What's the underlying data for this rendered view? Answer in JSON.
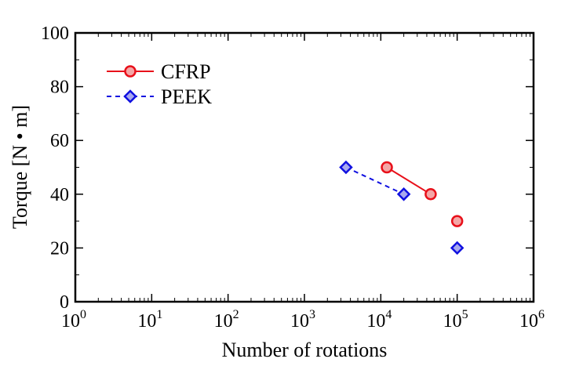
{
  "chart_data": {
    "type": "scatter",
    "title": "",
    "xlabel": "Number of rotations",
    "ylabel": "Torque [N • m]",
    "xscale": "log",
    "xlim": [
      1,
      1000000
    ],
    "ylim": [
      0,
      100
    ],
    "x_ticks": [
      {
        "base": "10",
        "exp": "0",
        "value": 1
      },
      {
        "base": "10",
        "exp": "1",
        "value": 10
      },
      {
        "base": "10",
        "exp": "2",
        "value": 100
      },
      {
        "base": "10",
        "exp": "3",
        "value": 1000
      },
      {
        "base": "10",
        "exp": "4",
        "value": 10000
      },
      {
        "base": "10",
        "exp": "5",
        "value": 100000
      },
      {
        "base": "10",
        "exp": "6",
        "value": 1000000
      }
    ],
    "y_ticks": [
      "0",
      "20",
      "40",
      "60",
      "80",
      "100"
    ],
    "legend_position": "top-left",
    "series": [
      {
        "name": "CFRP",
        "color": "#e8101a",
        "fill": "#f4a6a6",
        "marker": "circle",
        "line": "solid",
        "x": [
          12000,
          45000,
          100000
        ],
        "y": [
          50,
          40,
          30
        ],
        "connected": [
          true,
          true,
          false
        ]
      },
      {
        "name": "PEEK",
        "color": "#1010e0",
        "fill": "#a9a9ee",
        "marker": "diamond",
        "line": "dashed",
        "x": [
          3500,
          20000,
          100000
        ],
        "y": [
          50,
          40,
          20
        ],
        "connected": [
          true,
          true,
          false
        ]
      }
    ]
  }
}
